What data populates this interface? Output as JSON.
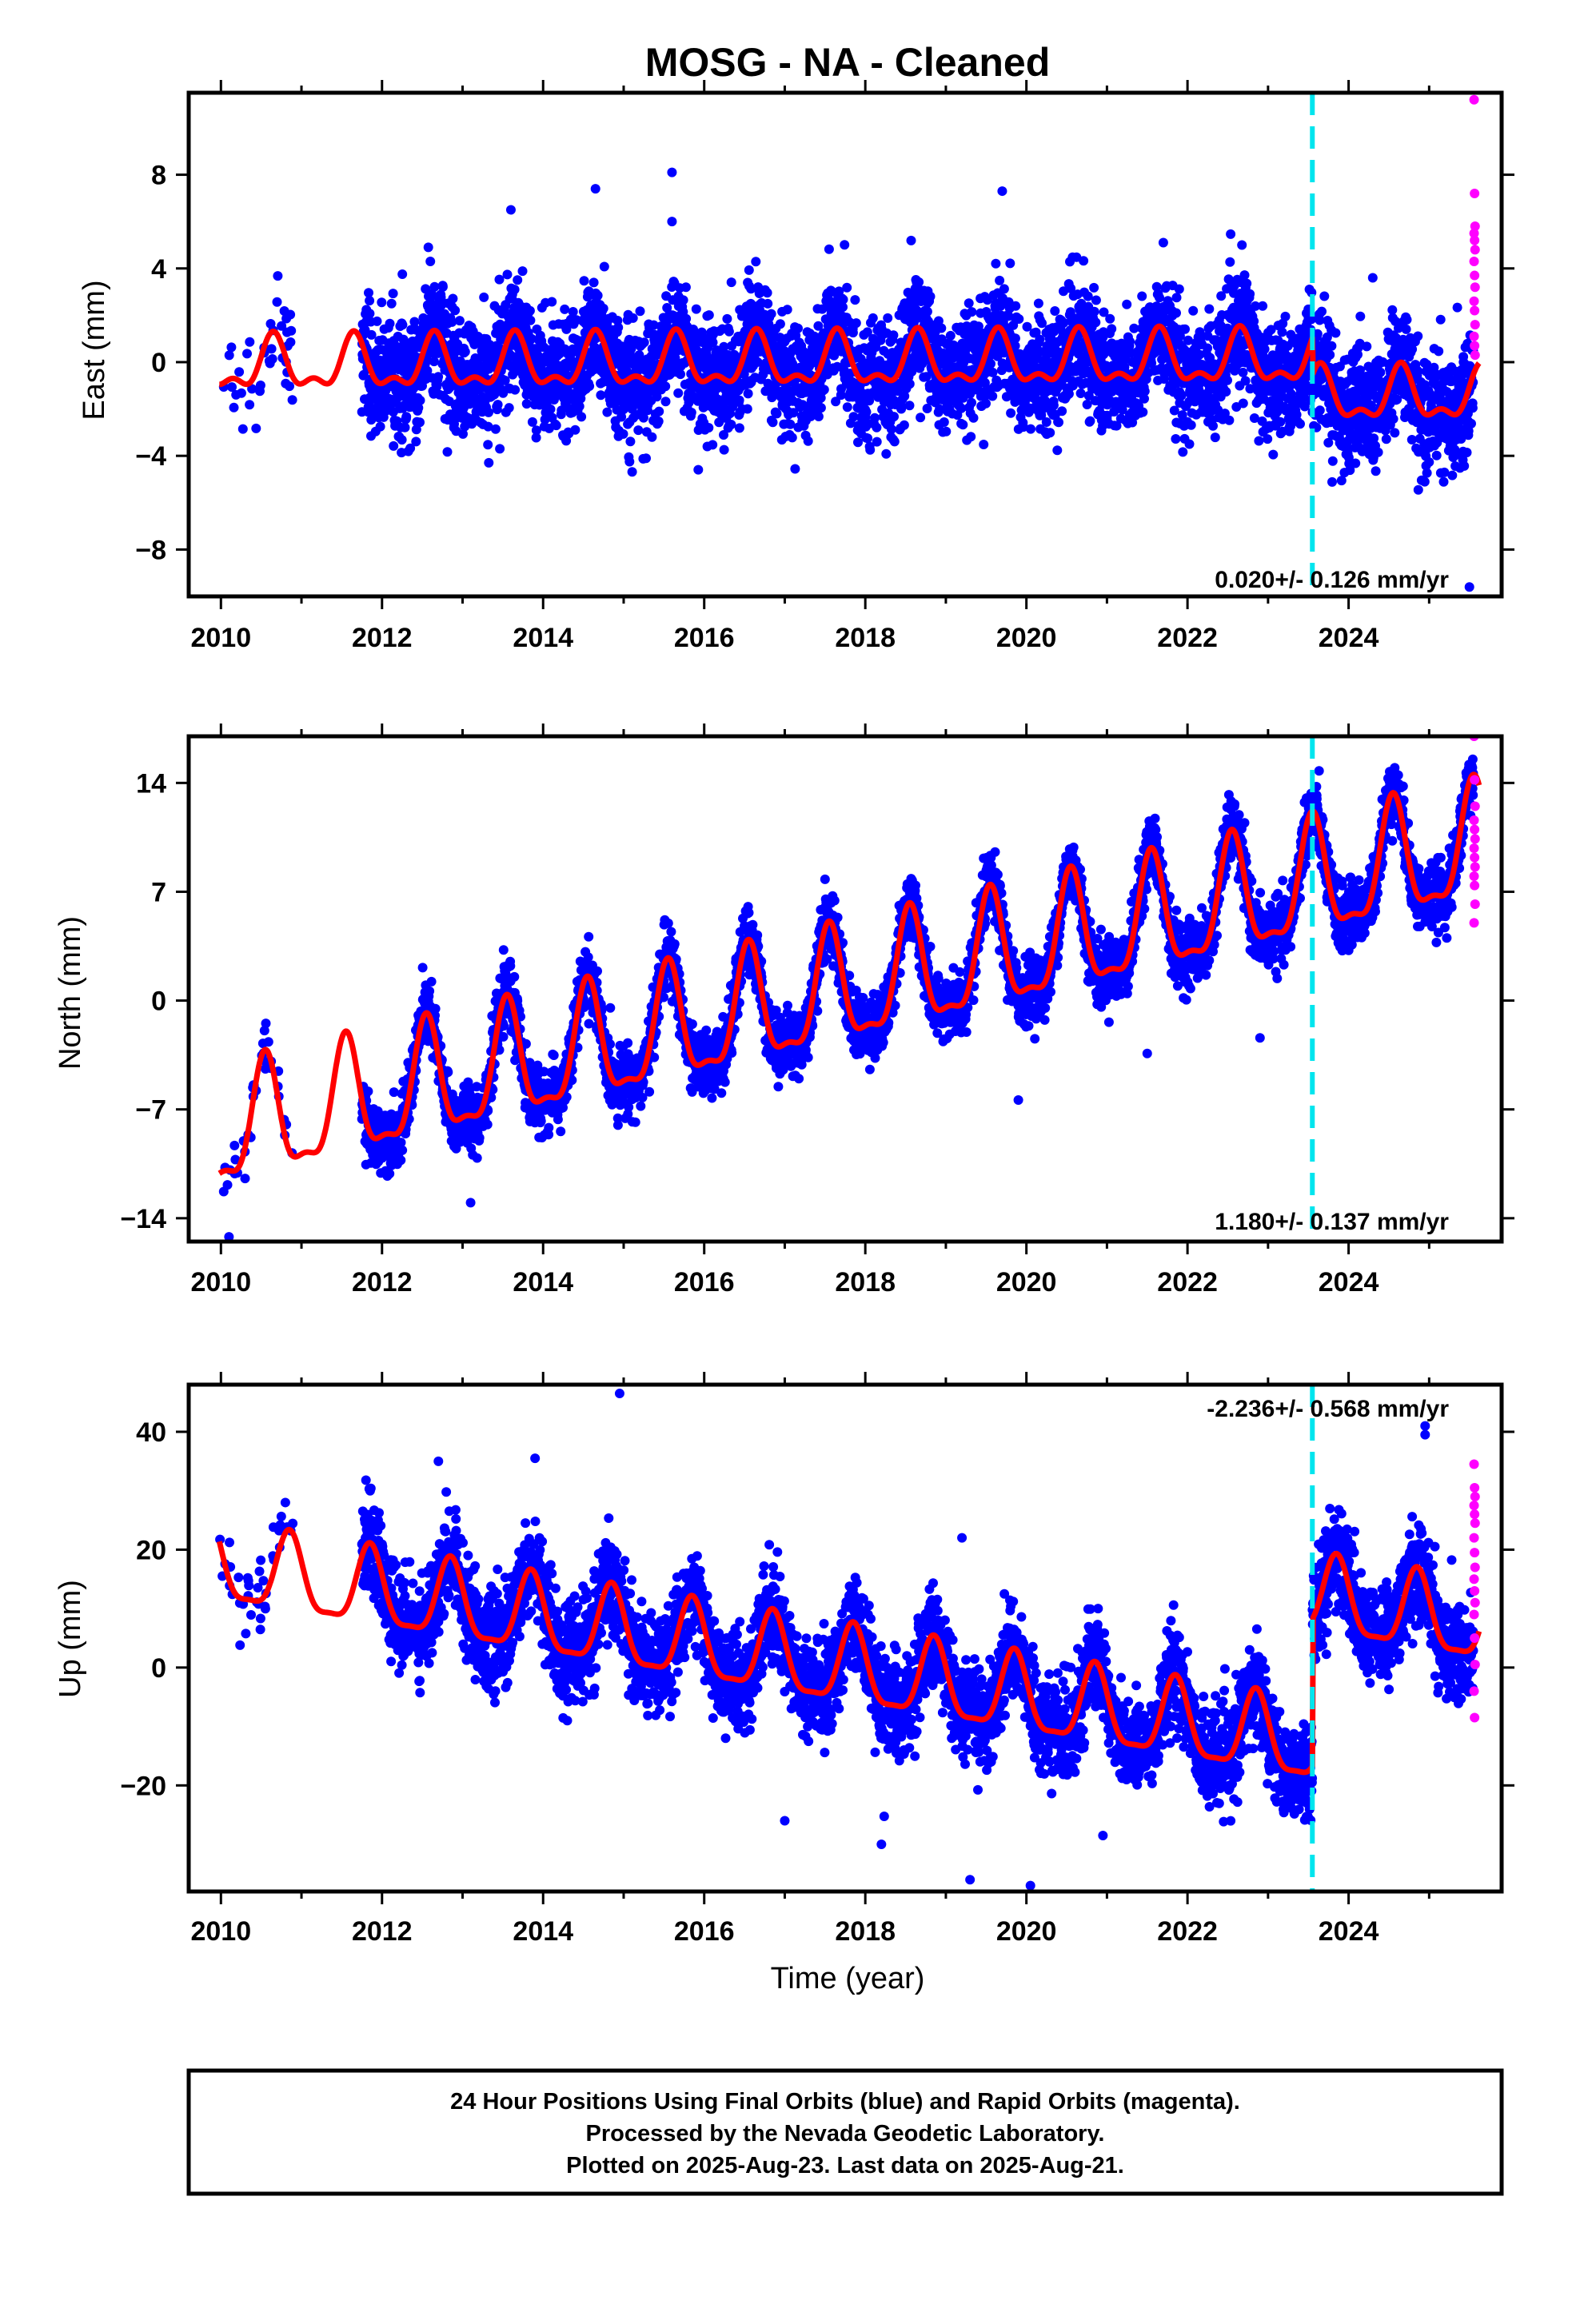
{
  "title": "MOSG  - NA - Cleaned",
  "footer": {
    "lines": [
      "24 Hour Positions Using Final Orbits (blue) and Rapid Orbits (magenta).",
      "Processed by the Nevada Geodetic Laboratory.",
      "Plotted on 2025-Aug-23. Last data on 2025-Aug-21."
    ]
  },
  "colors": {
    "final_orbits": "#0000ff",
    "rapid_orbits": "#ff00ff",
    "model_fit": "#ff0000",
    "equipment_change": "#00e5ee"
  },
  "chart_data": [
    {
      "type": "scatter",
      "name": "east",
      "ylabel": "East (mm)",
      "xlabel": "",
      "xlim": [
        2009.6,
        2025.9
      ],
      "ylim": [
        -10,
        11.5
      ],
      "xticks": [
        2010,
        2012,
        2014,
        2016,
        2018,
        2020,
        2022,
        2024
      ],
      "yticks": [
        -8,
        -4,
        0,
        4,
        8
      ],
      "rate_label": "0.020+/- 0.126 mm/yr",
      "rate_position": "bottom-right",
      "discontinuity_year": 2023.55,
      "rapid_orbit_start": 2025.55,
      "model": {
        "offset": -0.2,
        "trend": 0.02,
        "annual_amp": 1.0,
        "annual_phase_year": 2010.65,
        "semiannual_amp": 0.5,
        "step_at_discontinuity": -1.6
      },
      "scatter_sigma": 1.2,
      "gaps": [
        [
          2010.9,
          2011.75
        ]
      ],
      "sparse_segments": [
        [
          2009.9,
          2010.9
        ]
      ],
      "outliers": [
        {
          "x": 2013.6,
          "y": 6.5
        },
        {
          "x": 2014.65,
          "y": 7.4
        },
        {
          "x": 2015.6,
          "y": 8.1
        },
        {
          "x": 2019.7,
          "y": 7.3
        },
        {
          "x": 2021.7,
          "y": 5.1
        },
        {
          "x": 2024.3,
          "y": 3.6
        },
        {
          "x": 2025.5,
          "y": -9.6
        },
        {
          "x": 2015.6,
          "y": 6.0
        },
        {
          "x": 2012.6,
          "y": 4.3
        }
      ],
      "rapid_points_y": [
        11.2,
        7.2,
        5.8,
        5.5,
        5.2,
        4.8,
        4.3,
        3.7,
        3.2,
        2.6,
        2.2,
        1.6,
        1.1,
        0.7,
        0.3
      ]
    },
    {
      "type": "scatter",
      "name": "north",
      "ylabel": "North (mm)",
      "xlabel": "",
      "xlim": [
        2009.6,
        2025.9
      ],
      "ylim": [
        -15.5,
        17
      ],
      "xticks": [
        2010,
        2012,
        2014,
        2016,
        2018,
        2020,
        2022,
        2024
      ],
      "yticks": [
        -14,
        -7,
        0,
        7,
        14
      ],
      "rate_label": "1.180+/- 0.137 mm/yr",
      "rate_position": "bottom-right",
      "discontinuity_year": 2023.55,
      "rapid_orbit_start": 2025.55,
      "model": {
        "offset": -8.6,
        "trend": 1.18,
        "annual_amp": 3.6,
        "annual_phase_year": 2010.55,
        "semiannual_amp": 1.2,
        "step_at_discontinuity": 0.0
      },
      "scatter_sigma": 1.0,
      "gaps": [
        [
          2010.9,
          2011.75
        ]
      ],
      "sparse_segments": [
        [
          2009.9,
          2010.9
        ]
      ],
      "outliers": [
        {
          "x": 2017.5,
          "y": 7.8
        },
        {
          "x": 2019.9,
          "y": -6.4
        },
        {
          "x": 2021.5,
          "y": -3.4
        },
        {
          "x": 2022.9,
          "y": -2.4
        },
        {
          "x": 2010.1,
          "y": -15.2
        },
        {
          "x": 2013.1,
          "y": -13.0
        },
        {
          "x": 2023.5,
          "y": 12.0
        }
      ],
      "rapid_points_y": [
        17.0,
        14.2,
        12.5,
        11.6,
        11.0,
        10.4,
        9.8,
        9.2,
        8.6,
        8.0,
        7.4,
        6.2,
        5.0
      ]
    },
    {
      "type": "scatter",
      "name": "up",
      "ylabel": "Up (mm)",
      "xlabel": "Time (year)",
      "xlim": [
        2009.6,
        2025.9
      ],
      "ylim": [
        -38,
        48
      ],
      "xticks": [
        2010,
        2012,
        2014,
        2016,
        2018,
        2020,
        2022,
        2024
      ],
      "yticks": [
        -20,
        0,
        20,
        40
      ],
      "rate_label": "-2.236+/- 0.568 mm/yr",
      "rate_position": "top-right",
      "discontinuity_year": 2023.55,
      "rapid_orbit_start": 2025.55,
      "model": {
        "offset": 17.0,
        "trend": -2.236,
        "annual_amp": 6.5,
        "annual_phase_year": 2010.85,
        "semiannual_amp": 1.8,
        "step_at_discontinuity": 25.0
      },
      "scatter_sigma": 4.0,
      "gaps": [
        [
          2010.9,
          2011.75
        ]
      ],
      "sparse_segments": [
        [
          2009.9,
          2010.9
        ]
      ],
      "outliers": [
        {
          "x": 2014.95,
          "y": 46.5
        },
        {
          "x": 2013.9,
          "y": 35.5
        },
        {
          "x": 2012.7,
          "y": 35.0
        },
        {
          "x": 2024.95,
          "y": 41.0
        },
        {
          "x": 2024.95,
          "y": 39.5
        },
        {
          "x": 2017.0,
          "y": -26.0
        },
        {
          "x": 2018.2,
          "y": -30.0
        },
        {
          "x": 2019.3,
          "y": -36.0
        },
        {
          "x": 2020.05,
          "y": -37.0
        },
        {
          "x": 2020.95,
          "y": -28.5
        },
        {
          "x": 2019.2,
          "y": 22.0
        },
        {
          "x": 2010.8,
          "y": 28.0
        }
      ],
      "rapid_points_y": [
        34.5,
        30.5,
        29.0,
        27.5,
        26.0,
        24.5,
        22.0,
        19.5,
        17.0,
        15.0,
        13.0,
        11.0,
        9.0,
        5.0,
        0.5,
        -4.0,
        -8.5
      ]
    }
  ]
}
